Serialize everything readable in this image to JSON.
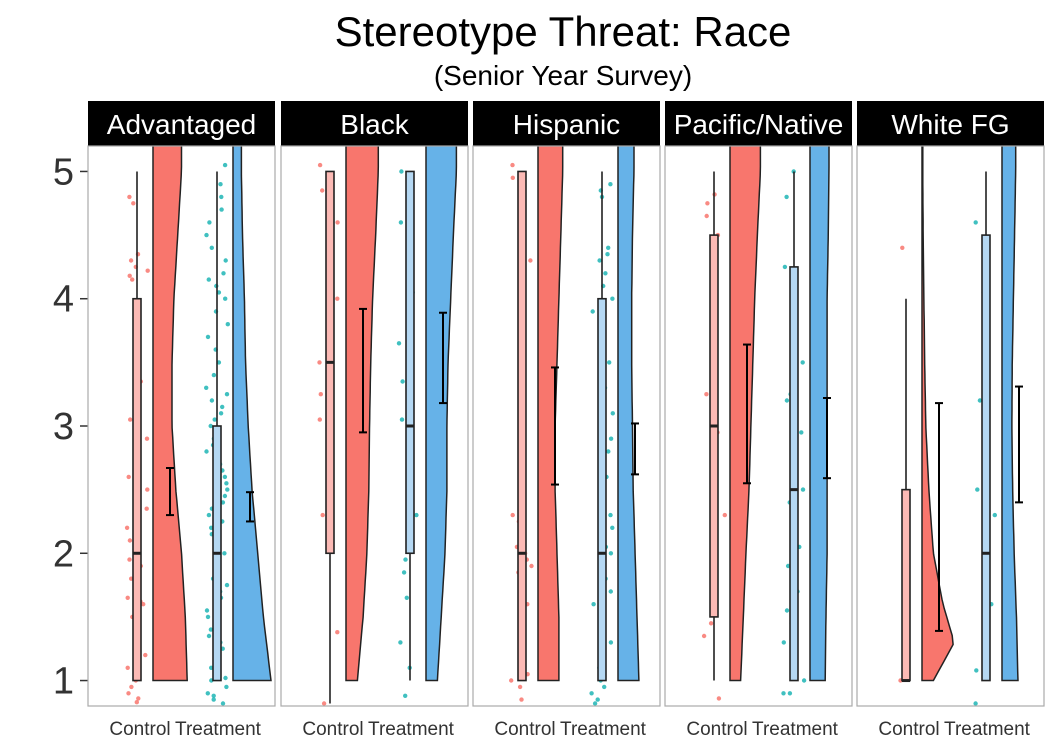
{
  "chart_data": {
    "type": "raincloud",
    "title": "Stereotype Threat: Race",
    "subtitle": "(Senior Year Survey)",
    "xlabel": "",
    "ylabel": "",
    "ylim": [
      0.8,
      5.2
    ],
    "yticks": [
      1,
      2,
      3,
      4,
      5
    ],
    "categories": [
      "Control",
      "Treatment"
    ],
    "colors": {
      "control_fill": "#f8766d",
      "control_box": "#fcbab5",
      "control_point": "#f8766d",
      "treatment_fill": "#66b2e8",
      "treatment_box": "#b5d8f3",
      "treatment_point": "#1fb5b5",
      "strip_bg": "#000000",
      "strip_text": "#ffffff",
      "outline": "#222222"
    },
    "panels": [
      {
        "label": "Advantaged",
        "groups": [
          {
            "name": "Control",
            "box": {
              "min": 1,
              "q1": 1,
              "median": 2,
              "q3": 4,
              "max": 5
            },
            "mean": 2.48,
            "ci": [
              2.3,
              2.67
            ],
            "density": [
              [
                1.0,
                0.9
              ],
              [
                1.5,
                0.85
              ],
              [
                2.0,
                0.75
              ],
              [
                2.5,
                0.6
              ],
              [
                3.0,
                0.5
              ],
              [
                3.5,
                0.5
              ],
              [
                4.0,
                0.55
              ],
              [
                4.5,
                0.65
              ],
              [
                5.0,
                0.75
              ]
            ],
            "points": [
              0.83,
              0.86,
              0.9,
              0.95,
              1.0,
              1.08,
              1.1,
              1.2,
              1.3,
              1.36,
              1.5,
              1.6,
              1.62,
              1.65,
              1.7,
              1.8,
              1.9,
              1.95,
              2.0,
              2.05,
              2.1,
              2.2,
              2.35,
              2.5,
              2.6,
              2.75,
              2.9,
              3.05,
              3.15,
              3.3,
              3.35,
              4.15,
              4.18,
              4.22,
              4.25,
              4.3,
              4.35,
              4.75,
              4.8
            ]
          },
          {
            "name": "Treatment",
            "box": {
              "min": 1,
              "q1": 1,
              "median": 2,
              "q3": 3,
              "max": 5
            },
            "mean": 2.36,
            "ci": [
              2.25,
              2.48
            ],
            "density": [
              [
                1.0,
                1.0
              ],
              [
                1.5,
                0.8
              ],
              [
                2.0,
                0.65
              ],
              [
                2.5,
                0.5
              ],
              [
                3.0,
                0.4
              ],
              [
                3.5,
                0.33
              ],
              [
                4.0,
                0.3
              ],
              [
                4.5,
                0.25
              ],
              [
                5.0,
                0.22
              ]
            ],
            "points": [
              0.82,
              0.85,
              0.88,
              0.9,
              0.95,
              1.0,
              1.02,
              1.05,
              1.1,
              1.15,
              1.2,
              1.25,
              1.3,
              1.35,
              1.4,
              1.45,
              1.5,
              1.55,
              1.6,
              1.65,
              1.7,
              1.75,
              1.8,
              1.85,
              1.9,
              1.95,
              2.0,
              2.05,
              2.1,
              2.15,
              2.2,
              2.25,
              2.3,
              2.35,
              2.4,
              2.45,
              2.5,
              2.55,
              2.6,
              2.65,
              2.7,
              2.75,
              2.8,
              2.85,
              2.9,
              3.0,
              3.05,
              3.1,
              3.15,
              3.2,
              3.25,
              3.3,
              3.4,
              3.5,
              3.6,
              3.7,
              3.8,
              3.9,
              4.0,
              4.05,
              4.1,
              4.15,
              4.2,
              4.3,
              4.4,
              4.5,
              4.6,
              4.7,
              4.8,
              4.9,
              5.05
            ]
          }
        ]
      },
      {
        "label": "Black",
        "groups": [
          {
            "name": "Control",
            "box": {
              "min": 0.82,
              "q1": 2,
              "median": 3.5,
              "q3": 5,
              "max": 5
            },
            "mean": 3.43,
            "ci": [
              2.95,
              3.92
            ],
            "density": [
              [
                1.0,
                0.3
              ],
              [
                1.5,
                0.45
              ],
              [
                2.0,
                0.55
              ],
              [
                2.5,
                0.6
              ],
              [
                3.0,
                0.62
              ],
              [
                3.5,
                0.65
              ],
              [
                4.0,
                0.7
              ],
              [
                4.5,
                0.78
              ],
              [
                5.0,
                0.85
              ]
            ],
            "points": [
              0.82,
              1.38,
              2.3,
              3.05,
              3.25,
              3.5,
              3.65,
              4.0,
              4.6,
              4.85,
              4.95,
              5.05
            ]
          },
          {
            "name": "Treatment",
            "box": {
              "min": 1,
              "q1": 2,
              "median": 3,
              "q3": 5,
              "max": 5
            },
            "mean": 3.53,
            "ci": [
              3.18,
              3.89
            ],
            "density": [
              [
                1.0,
                0.3
              ],
              [
                1.5,
                0.4
              ],
              [
                2.0,
                0.5
              ],
              [
                2.5,
                0.55
              ],
              [
                3.0,
                0.55
              ],
              [
                3.5,
                0.58
              ],
              [
                4.0,
                0.65
              ],
              [
                4.5,
                0.72
              ],
              [
                5.0,
                0.8
              ]
            ],
            "points": [
              0.88,
              1.1,
              1.3,
              1.65,
              1.85,
              1.95,
              2.3,
              3.05,
              3.35,
              3.65,
              4.05,
              4.6,
              4.65,
              5.0
            ]
          }
        ]
      },
      {
        "label": "Hispanic",
        "groups": [
          {
            "name": "Control",
            "box": {
              "min": 1,
              "q1": 1,
              "median": 2,
              "q3": 5,
              "max": 5
            },
            "mean": 3.0,
            "ci": [
              2.54,
              3.46
            ],
            "density": [
              [
                1.0,
                0.55
              ],
              [
                1.5,
                0.55
              ],
              [
                2.0,
                0.5
              ],
              [
                2.5,
                0.45
              ],
              [
                3.0,
                0.45
              ],
              [
                3.5,
                0.5
              ],
              [
                4.0,
                0.55
              ],
              [
                4.5,
                0.6
              ],
              [
                5.0,
                0.65
              ]
            ],
            "points": [
              0.85,
              0.95,
              1.0,
              1.05,
              1.3,
              1.6,
              1.85,
              1.9,
              1.95,
              2.0,
              2.05,
              2.25,
              2.3,
              4.3,
              4.95,
              5.05
            ]
          },
          {
            "name": "Treatment",
            "box": {
              "min": 1,
              "q1": 1,
              "median": 2,
              "q3": 4,
              "max": 5
            },
            "mean": 2.82,
            "ci": [
              2.62,
              3.02
            ],
            "density": [
              [
                1.0,
                0.55
              ],
              [
                1.5,
                0.5
              ],
              [
                2.0,
                0.45
              ],
              [
                2.5,
                0.4
              ],
              [
                3.0,
                0.38
              ],
              [
                3.5,
                0.36
              ],
              [
                4.0,
                0.36
              ],
              [
                4.5,
                0.38
              ],
              [
                5.0,
                0.42
              ]
            ],
            "points": [
              0.82,
              0.85,
              0.9,
              0.95,
              1.0,
              1.1,
              1.2,
              1.3,
              1.4,
              1.5,
              1.6,
              1.7,
              1.8,
              1.9,
              2.0,
              2.05,
              2.1,
              2.2,
              2.3,
              2.4,
              2.5,
              2.6,
              2.8,
              2.9,
              3.0,
              3.1,
              3.3,
              3.5,
              3.7,
              3.9,
              4.0,
              4.1,
              4.2,
              4.3,
              4.35,
              4.4,
              4.8,
              4.85,
              4.9
            ]
          }
        ]
      },
      {
        "label": "Pacific/Native",
        "groups": [
          {
            "name": "Control",
            "box": {
              "min": 1,
              "q1": 1.5,
              "median": 3,
              "q3": 4.5,
              "max": 5
            },
            "mean": 3.09,
            "ci": [
              2.55,
              3.64
            ],
            "density": [
              [
                1.0,
                0.28
              ],
              [
                1.5,
                0.35
              ],
              [
                2.0,
                0.42
              ],
              [
                2.5,
                0.5
              ],
              [
                3.0,
                0.55
              ],
              [
                3.5,
                0.6
              ],
              [
                4.0,
                0.65
              ],
              [
                4.5,
                0.72
              ],
              [
                5.0,
                0.8
              ]
            ],
            "points": [
              0.86,
              1.35,
              1.45,
              1.85,
              2.3,
              2.95,
              3.25,
              4.5,
              4.65,
              4.75,
              4.82
            ]
          },
          {
            "name": "Treatment",
            "box": {
              "min": 1,
              "q1": 1,
              "median": 2.5,
              "q3": 4.25,
              "max": 5
            },
            "mean": 2.91,
            "ci": [
              2.59,
              3.22
            ],
            "density": [
              [
                1.0,
                0.4
              ],
              [
                1.5,
                0.42
              ],
              [
                2.0,
                0.45
              ],
              [
                2.5,
                0.45
              ],
              [
                3.0,
                0.45
              ],
              [
                3.5,
                0.45
              ],
              [
                4.0,
                0.45
              ],
              [
                4.5,
                0.48
              ],
              [
                5.0,
                0.5
              ]
            ],
            "points": [
              0.9,
              0.9,
              1.0,
              1.1,
              1.3,
              1.45,
              1.55,
              1.7,
              1.9,
              2.05,
              2.4,
              2.5,
              2.6,
              2.9,
              2.95,
              3.2,
              3.25,
              3.3,
              3.5,
              3.75,
              4.25,
              4.8,
              5.0
            ]
          }
        ]
      },
      {
        "label": "White FG",
        "groups": [
          {
            "name": "Control",
            "box": {
              "min": 1,
              "q1": 1,
              "median": 1,
              "q3": 2.5,
              "max": 4
            },
            "mean": 2.28,
            "ci": [
              1.39,
              3.18
            ],
            "density": [
              [
                1.0,
                0.3
              ],
              [
                1.3,
                0.85
              ],
              [
                1.6,
                0.55
              ],
              [
                2.0,
                0.3
              ],
              [
                2.5,
                0.18
              ],
              [
                3.0,
                0.1
              ],
              [
                3.5,
                0.07
              ],
              [
                4.0,
                0.05
              ],
              [
                4.5,
                0.03
              ],
              [
                5.0,
                0.02
              ]
            ],
            "points": [
              1.0,
              1.12,
              1.2,
              4.4
            ]
          },
          {
            "name": "Treatment",
            "box": {
              "min": 1,
              "q1": 1,
              "median": 2,
              "q3": 4.5,
              "max": 5
            },
            "mean": 2.86,
            "ci": [
              2.4,
              3.31
            ],
            "density": [
              [
                1.0,
                0.42
              ],
              [
                1.5,
                0.38
              ],
              [
                2.0,
                0.32
              ],
              [
                2.5,
                0.28
              ],
              [
                3.0,
                0.26
              ],
              [
                3.5,
                0.27
              ],
              [
                4.0,
                0.3
              ],
              [
                4.5,
                0.33
              ],
              [
                5.0,
                0.36
              ]
            ],
            "points": [
              0.82,
              1.08,
              1.6,
              2.0,
              2.05,
              2.3,
              2.5,
              3.0,
              3.2,
              4.05,
              4.6
            ]
          }
        ]
      }
    ]
  }
}
